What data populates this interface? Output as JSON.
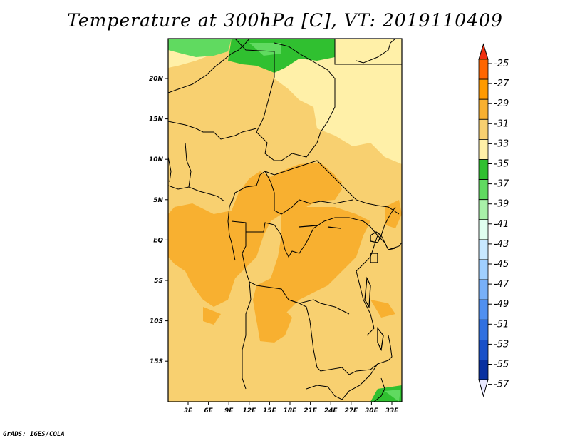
{
  "title": "Temperature at 300hPa [C], VT: 2019110409",
  "credit": "GrADS: IGES/COLA",
  "map": {
    "lat_labels": [
      "20N",
      "15N",
      "10N",
      "5N",
      "EQ",
      "5S",
      "10S",
      "15S"
    ],
    "lon_labels": [
      "3E",
      "6E",
      "9E",
      "12E",
      "15E",
      "18E",
      "21E",
      "24E",
      "27E",
      "30E",
      "33E"
    ],
    "lon_range": [
      0,
      35
    ],
    "lat_range": [
      -20,
      25
    ]
  },
  "colorbar": {
    "labels": [
      "-25",
      "-27",
      "-29",
      "-31",
      "-33",
      "-35",
      "-37",
      "-39",
      "-41",
      "-43",
      "-45",
      "-47",
      "-49",
      "-51",
      "-53",
      "-55",
      "-57"
    ],
    "colors": [
      "#ff6600",
      "#ff9a00",
      "#f8b030",
      "#f8d070",
      "#fff0a8",
      "#30c030",
      "#60da60",
      "#a8f0a8",
      "#e0fff0",
      "#c8e8ff",
      "#a0d0ff",
      "#78b0f8",
      "#5090f0",
      "#3070e0",
      "#1850c8",
      "#0830a0",
      "#0a0a60"
    ],
    "top_arrow_color": "#f03010",
    "bottom_arrow_color": "#e8e8ff"
  },
  "legend_colors": {
    "t_minus_29_31": "#f8b030",
    "t_minus_31_33": "#f8d070",
    "t_minus_33_35": "#fff0a8",
    "t_minus_35_37": "#30c030",
    "t_minus_37_39": "#60da60"
  }
}
